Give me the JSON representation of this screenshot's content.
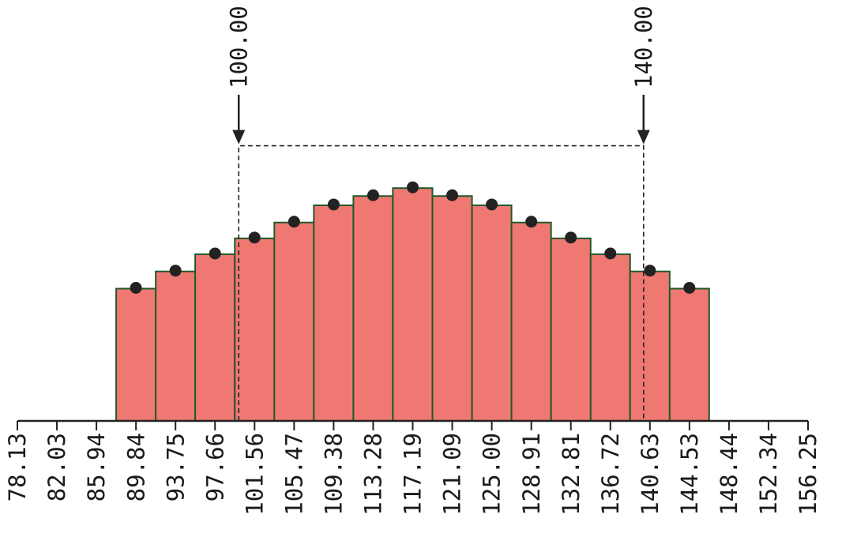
{
  "chart_data": {
    "type": "bar",
    "title": "",
    "xlabel": "",
    "ylabel": "",
    "grid": false,
    "bar_color": "#f07872",
    "bar_edge_color": "#1f5a2a",
    "point_color": "#222222",
    "xlim": [
      78.13,
      156.25
    ],
    "tick_labels": [
      "78.13",
      "82.03",
      "85.94",
      "89.84",
      "93.75",
      "97.66",
      "101.56",
      "105.47",
      "109.38",
      "113.28",
      "117.19",
      "121.09",
      "125.00",
      "128.91",
      "132.81",
      "136.72",
      "140.63",
      "144.53",
      "148.44",
      "152.34",
      "156.25"
    ],
    "bins": [
      {
        "start": 87.89,
        "end": 91.8,
        "value": 5.0
      },
      {
        "start": 91.8,
        "end": 95.7,
        "value": 5.65
      },
      {
        "start": 95.7,
        "end": 99.61,
        "value": 6.3
      },
      {
        "start": 99.61,
        "end": 103.52,
        "value": 6.9
      },
      {
        "start": 103.52,
        "end": 107.42,
        "value": 7.5
      },
      {
        "start": 107.42,
        "end": 111.33,
        "value": 8.15
      },
      {
        "start": 111.33,
        "end": 115.23,
        "value": 8.5
      },
      {
        "start": 115.23,
        "end": 119.14,
        "value": 8.8
      },
      {
        "start": 119.14,
        "end": 123.05,
        "value": 8.5
      },
      {
        "start": 123.05,
        "end": 126.95,
        "value": 8.15
      },
      {
        "start": 126.95,
        "end": 130.86,
        "value": 7.5
      },
      {
        "start": 130.86,
        "end": 134.77,
        "value": 6.9
      },
      {
        "start": 134.77,
        "end": 138.67,
        "value": 6.3
      },
      {
        "start": 138.67,
        "end": 142.58,
        "value": 5.65
      },
      {
        "start": 142.58,
        "end": 146.48,
        "value": 5.0
      }
    ],
    "points": [
      {
        "x": 89.84,
        "y": 5.0
      },
      {
        "x": 93.75,
        "y": 5.65
      },
      {
        "x": 97.66,
        "y": 6.3
      },
      {
        "x": 101.56,
        "y": 6.9
      },
      {
        "x": 105.47,
        "y": 7.5
      },
      {
        "x": 109.38,
        "y": 8.15
      },
      {
        "x": 113.28,
        "y": 8.5
      },
      {
        "x": 117.19,
        "y": 8.8
      },
      {
        "x": 121.09,
        "y": 8.5
      },
      {
        "x": 125.0,
        "y": 8.15
      },
      {
        "x": 128.91,
        "y": 7.5
      },
      {
        "x": 132.81,
        "y": 6.9
      },
      {
        "x": 136.72,
        "y": 6.3
      },
      {
        "x": 140.63,
        "y": 5.65
      },
      {
        "x": 144.53,
        "y": 5.0
      }
    ],
    "ylim": [
      0,
      10
    ],
    "range": {
      "low": 100.0,
      "high": 140.0,
      "low_label": "100.00",
      "high_label": "140.00",
      "level": 10.4
    }
  }
}
